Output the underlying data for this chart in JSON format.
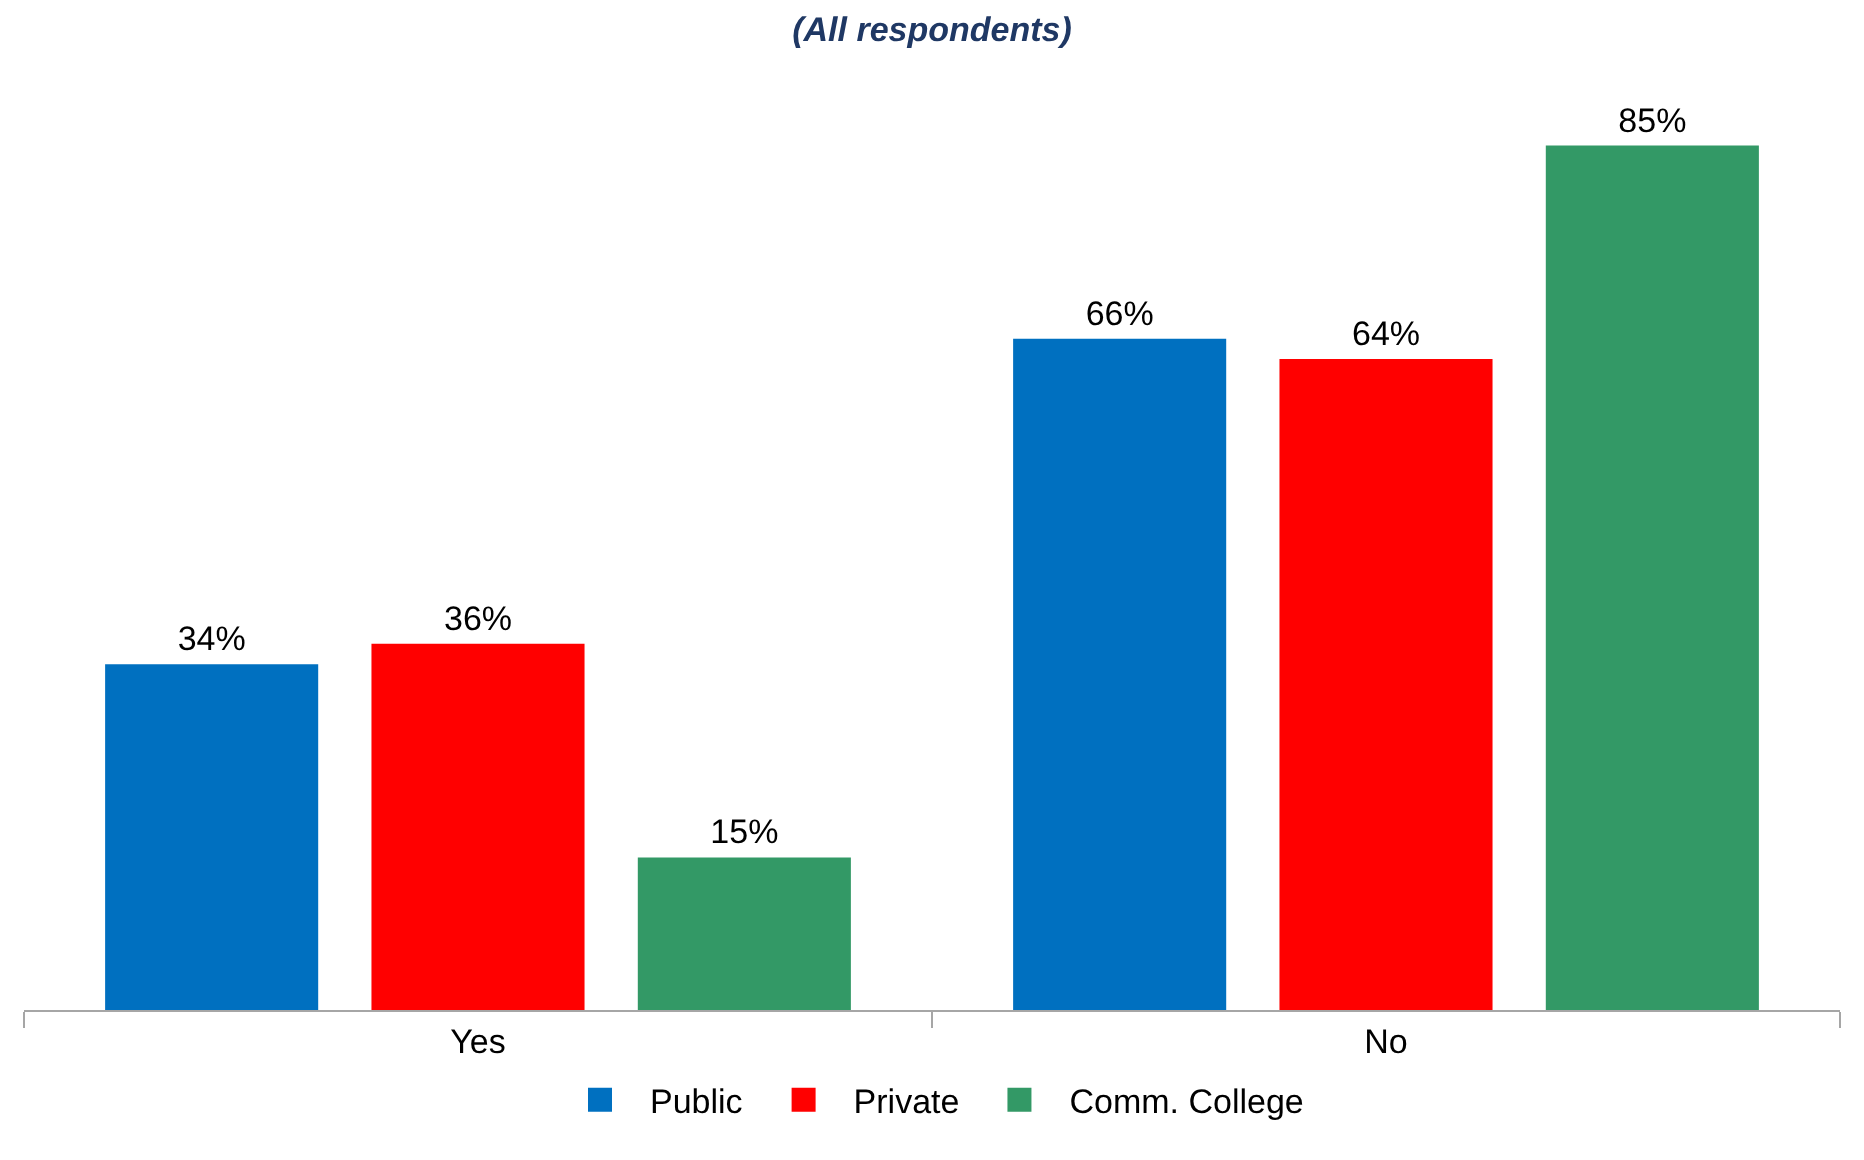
{
  "chart_data": {
    "type": "bar",
    "title": "(All respondents)",
    "categories": [
      "Yes",
      "No"
    ],
    "series": [
      {
        "name": "Public",
        "color": "#0070c0",
        "values": [
          34,
          66
        ],
        "value_labels": [
          "34%",
          "66%"
        ]
      },
      {
        "name": "Private",
        "color": "#ff0000",
        "values": [
          36,
          64
        ],
        "value_labels": [
          "36%",
          "64%"
        ]
      },
      {
        "name": "Comm. College",
        "color": "#339966",
        "values": [
          15,
          85
        ],
        "value_labels": [
          "15%",
          "85%"
        ]
      }
    ],
    "legend": "bottom",
    "grid": false
  }
}
